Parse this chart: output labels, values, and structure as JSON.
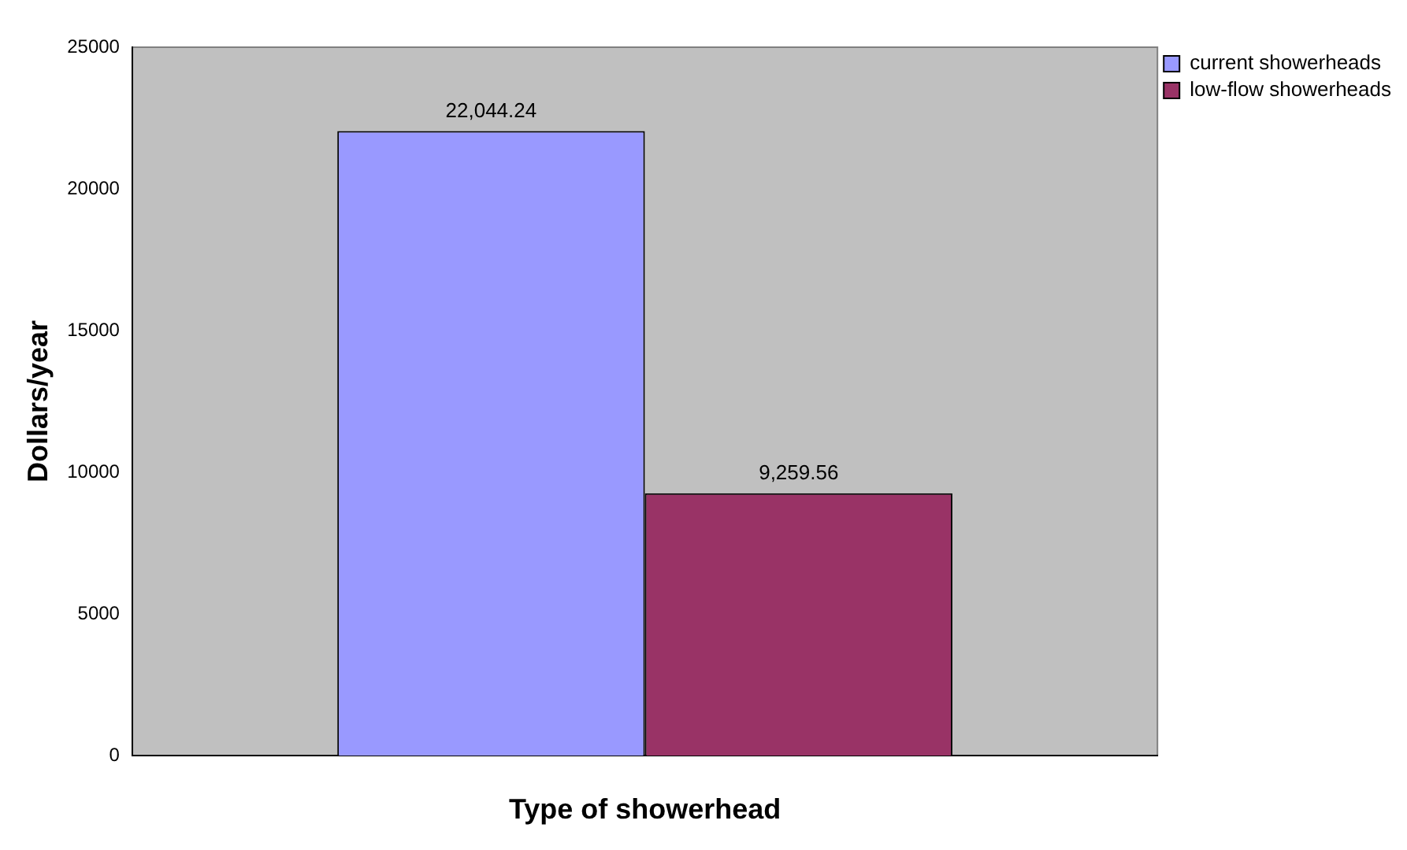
{
  "chart_data": {
    "type": "bar",
    "xlabel": "Type of showerhead",
    "ylabel": "Dollars/year",
    "categories": [
      null
    ],
    "series": [
      {
        "name": "current showerheads",
        "color": "#9999ff",
        "values": [
          22044.24
        ],
        "value_labels": [
          "22,044.24"
        ]
      },
      {
        "name": "low-flow showerheads",
        "color": "#993366",
        "values": [
          9259.56
        ],
        "value_labels": [
          "9,259.56"
        ]
      }
    ],
    "ylim": [
      0,
      25000
    ],
    "yticks": [
      0,
      5000,
      10000,
      15000,
      20000,
      25000
    ],
    "grid": false,
    "legend": "top right"
  }
}
